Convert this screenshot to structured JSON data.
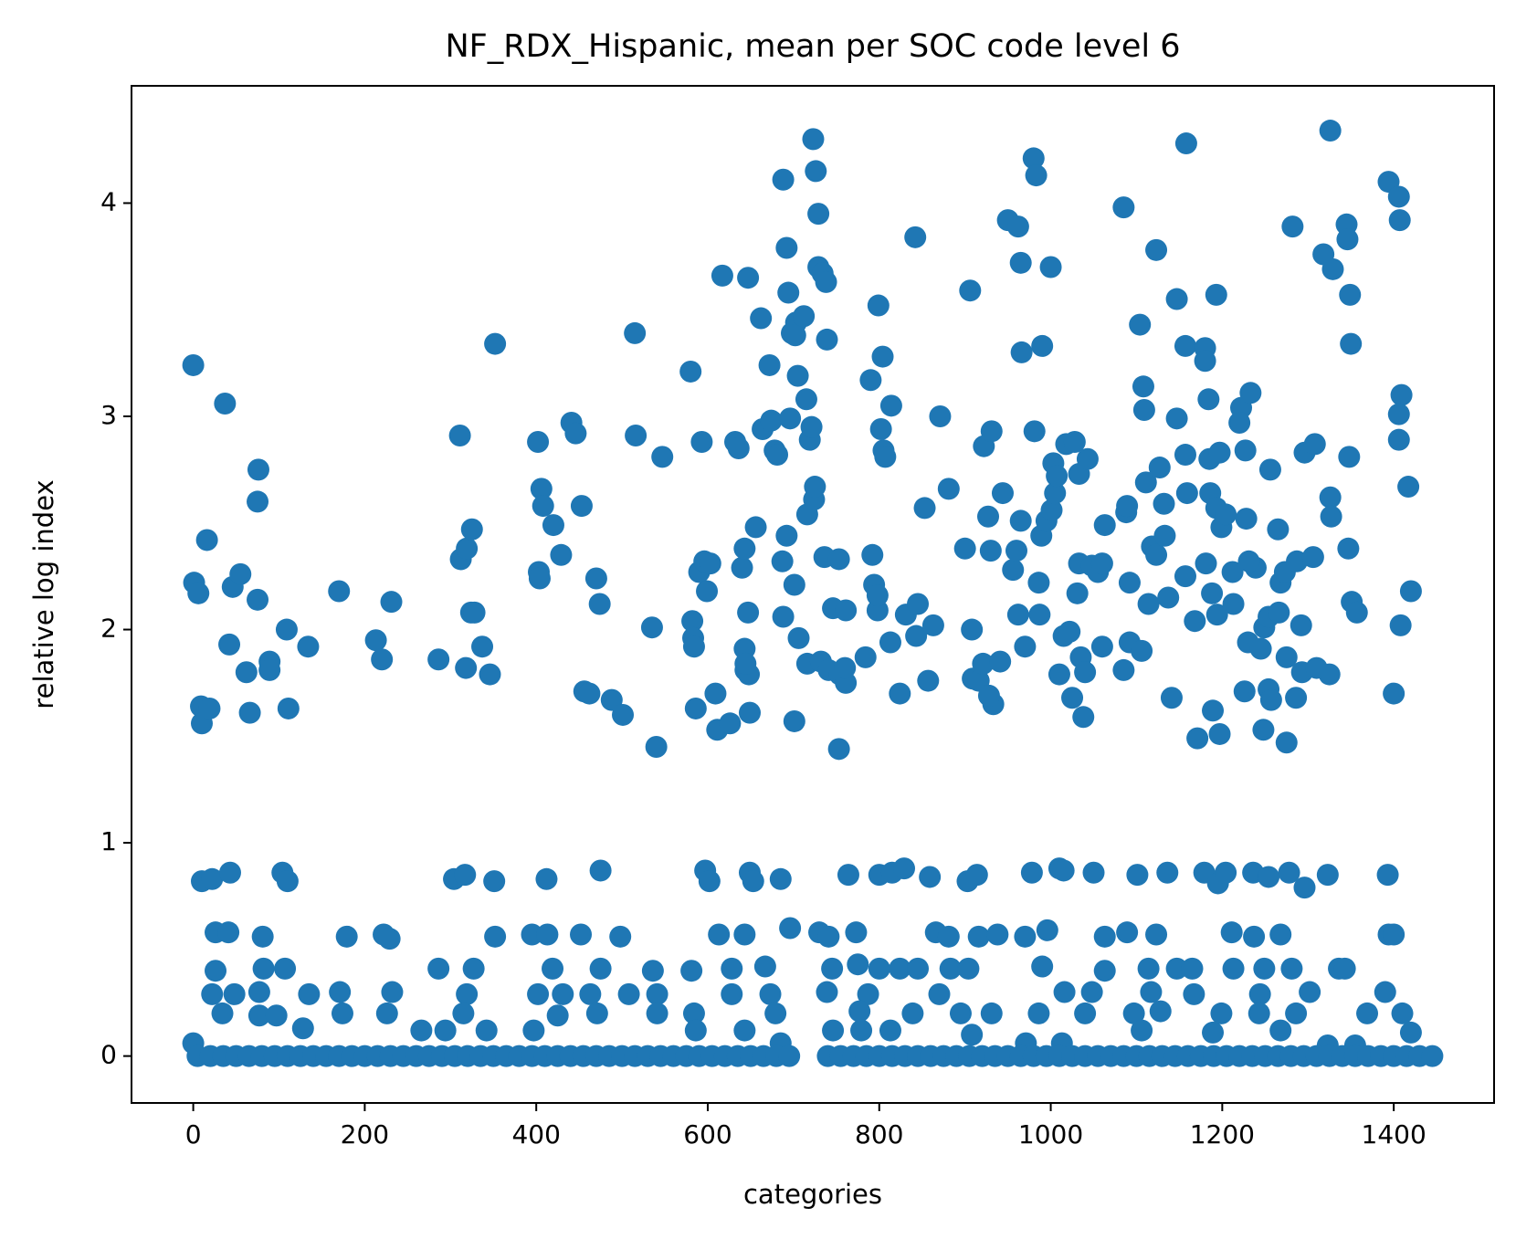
{
  "chart_data": {
    "type": "scatter",
    "title": "NF_RDX_Hispanic, mean per SOC code level 6",
    "x_label": "categories",
    "y_label": "relative log index",
    "color": "#1f77b4",
    "xlim": [
      -72,
      1517
    ],
    "ylim": [
      -0.22,
      4.55
    ],
    "xticks": [
      0,
      200,
      400,
      600,
      800,
      1000,
      1200,
      1400
    ],
    "yticks": [
      0,
      1,
      2,
      3,
      4
    ],
    "grid": false,
    "x": [
      0,
      1,
      6,
      9,
      10,
      19,
      16,
      37,
      46,
      55,
      42,
      62,
      66,
      75,
      76,
      75,
      89,
      89,
      109,
      111,
      134,
      170,
      213,
      220,
      231,
      286,
      311,
      312,
      319,
      325,
      324,
      328,
      318,
      337,
      346,
      352,
      402,
      403,
      404,
      406,
      408,
      420,
      429,
      441,
      446,
      453,
      456,
      462,
      470,
      474,
      488,
      501,
      515,
      516,
      535,
      540,
      547,
      580,
      582,
      583,
      584,
      586,
      593,
      590,
      596,
      599,
      603,
      609,
      611,
      617,
      626,
      632,
      636,
      640,
      643,
      647,
      647,
      643,
      644,
      648,
      644,
      649,
      656,
      662,
      664,
      672,
      674,
      678,
      681,
      687,
      688,
      688,
      692,
      692,
      694,
      696,
      698,
      701,
      701,
      703,
      702,
      705,
      706,
      712,
      715,
      716,
      716,
      719,
      721,
      724,
      725,
      723,
      726,
      729,
      729,
      732,
      734,
      738,
      739,
      736,
      741,
      746,
      753,
      753,
      754,
      761,
      761,
      760,
      784,
      790,
      792,
      794,
      798,
      798,
      799,
      802,
      805,
      804,
      807,
      814,
      813,
      824,
      831,
      842,
      843,
      845,
      853,
      857,
      863,
      871,
      881,
      900,
      906,
      908,
      909,
      916,
      921,
      922,
      927,
      931,
      930,
      933,
      928,
      944,
      941,
      950,
      956,
      960,
      962,
      965,
      966,
      965,
      970,
      962,
      980,
      983,
      981,
      986,
      987,
      990,
      989,
      995,
      1000,
      1001,
      1003,
      1005,
      1007,
      1010,
      1015,
      1018,
      1022,
      1025,
      1028,
      1033,
      1033,
      1031,
      1035,
      1040,
      1038,
      1043,
      1048,
      1055,
      1060,
      1060,
      1063,
      1085,
      1088,
      1085,
      1089,
      1092,
      1092,
      1106,
      1104,
      1108,
      1111,
      1109,
      1114,
      1118,
      1123,
      1123,
      1127,
      1132,
      1133,
      1137,
      1141,
      1147,
      1147,
      1157,
      1158,
      1157,
      1159,
      1157,
      1168,
      1171,
      1180,
      1180,
      1184,
      1186,
      1185,
      1181,
      1188,
      1189,
      1193,
      1193,
      1197,
      1197,
      1199,
      1194,
      1204,
      1212,
      1213,
      1222,
      1220,
      1226,
      1227,
      1228,
      1230,
      1233,
      1239,
      1231,
      1245,
      1249,
      1248,
      1254,
      1256,
      1254,
      1257,
      1265,
      1266,
      1268,
      1273,
      1275,
      1275,
      1282,
      1286,
      1287,
      1292,
      1293,
      1296,
      1306,
      1308,
      1310,
      1318,
      1326,
      1326,
      1327,
      1325,
      1329,
      1345,
      1346,
      1349,
      1350,
      1348,
      1347,
      1351,
      1357,
      1394,
      1400,
      1406,
      1407,
      1409,
      1406,
      1406,
      1408,
      1417,
      1420,
      10,
      22,
      43,
      104,
      110,
      304,
      317,
      351,
      412,
      475,
      597,
      602,
      649,
      653,
      685,
      764,
      800,
      815,
      829,
      859,
      903,
      914,
      978,
      1010,
      1015,
      1050,
      1101,
      1136,
      1179,
      1195,
      1204,
      1236,
      1254,
      1278,
      1296,
      1323,
      1393,
      26,
      41,
      81,
      179,
      222,
      229,
      352,
      395,
      413,
      452,
      498,
      613,
      643,
      696,
      730,
      741,
      773,
      866,
      881,
      916,
      938,
      970,
      996,
      1063,
      1089,
      1123,
      1211,
      1237,
      1268,
      1394,
      1400,
      26,
      82,
      107,
      286,
      327,
      419,
      475,
      536,
      581,
      628,
      667,
      745,
      775,
      800,
      824,
      845,
      883,
      904,
      990,
      1063,
      1114,
      1147,
      1165,
      1213,
      1249,
      1281,
      1336,
      1343,
      22,
      48,
      77,
      135,
      171,
      232,
      319,
      402,
      431,
      463,
      508,
      541,
      628,
      673,
      739,
      787,
      870,
      1016,
      1048,
      1117,
      1167,
      1244,
      1302,
      1390,
      34,
      77,
      97,
      174,
      226,
      315,
      425,
      471,
      541,
      584,
      679,
      777,
      839,
      895,
      931,
      986,
      1040,
      1097,
      1128,
      1199,
      1243,
      1286,
      1369,
      1410,
      128,
      266,
      294,
      342,
      397,
      586,
      643,
      746,
      779,
      813,
      908,
      1106,
      1189,
      1268,
      1420,
      0,
      685,
      971,
      1013,
      1323,
      1355,
      5,
      20,
      35,
      50,
      65,
      80,
      95,
      110,
      125,
      140,
      155,
      170,
      185,
      200,
      215,
      230,
      245,
      260,
      275,
      290,
      305,
      320,
      335,
      350,
      365,
      380,
      395,
      410,
      425,
      440,
      455,
      470,
      485,
      500,
      515,
      530,
      545,
      560,
      575,
      590,
      605,
      620,
      635,
      650,
      665,
      680,
      695,
      740,
      755,
      770,
      785,
      800,
      815,
      830,
      845,
      860,
      875,
      890,
      905,
      920,
      935,
      950,
      965,
      980,
      995,
      1010,
      1025,
      1040,
      1055,
      1070,
      1085,
      1100,
      1115,
      1130,
      1145,
      1160,
      1175,
      1190,
      1205,
      1220,
      1235,
      1250,
      1265,
      1280,
      1295,
      1310,
      1325,
      1340,
      1355,
      1370,
      1385,
      1400,
      1415,
      1430,
      1445
    ],
    "values": [
      3.24,
      2.22,
      2.17,
      1.64,
      1.56,
      1.63,
      2.42,
      3.06,
      2.2,
      2.26,
      1.93,
      1.8,
      1.61,
      2.14,
      2.75,
      2.6,
      1.85,
      1.81,
      2.0,
      1.63,
      1.92,
      2.18,
      1.95,
      1.86,
      2.13,
      1.86,
      2.91,
      2.33,
      2.38,
      2.47,
      2.08,
      2.08,
      1.82,
      1.92,
      1.79,
      3.34,
      2.88,
      2.27,
      2.24,
      2.66,
      2.58,
      2.49,
      2.35,
      2.97,
      2.92,
      2.58,
      1.71,
      1.7,
      2.24,
      2.12,
      1.67,
      1.6,
      3.39,
      2.91,
      2.01,
      1.45,
      2.81,
      3.21,
      2.04,
      1.96,
      1.92,
      1.63,
      2.88,
      2.27,
      2.32,
      2.18,
      2.31,
      1.7,
      1.53,
      3.66,
      1.56,
      2.88,
      2.85,
      2.29,
      2.38,
      2.08,
      3.65,
      1.91,
      1.81,
      1.79,
      1.84,
      1.61,
      2.48,
      3.46,
      2.94,
      3.24,
      2.98,
      2.84,
      2.82,
      2.32,
      2.06,
      4.11,
      2.44,
      3.79,
      3.58,
      2.99,
      3.39,
      1.57,
      2.21,
      3.44,
      3.38,
      3.19,
      1.96,
      3.47,
      3.08,
      2.54,
      1.84,
      2.89,
      2.95,
      2.61,
      2.67,
      4.3,
      4.15,
      3.95,
      3.7,
      1.85,
      3.67,
      3.63,
      3.36,
      2.34,
      1.81,
      2.1,
      2.33,
      1.44,
      1.79,
      2.09,
      1.75,
      1.82,
      1.87,
      3.17,
      2.35,
      2.21,
      2.09,
      2.16,
      3.52,
      2.94,
      2.84,
      3.28,
      2.81,
      3.05,
      1.94,
      1.7,
      2.07,
      3.84,
      1.97,
      2.12,
      2.57,
      1.76,
      2.02,
      3.0,
      2.66,
      2.38,
      3.59,
      2.0,
      1.77,
      1.76,
      1.84,
      2.86,
      2.53,
      2.93,
      2.37,
      1.65,
      1.69,
      2.64,
      1.85,
      3.92,
      2.28,
      2.37,
      3.89,
      3.72,
      3.3,
      2.51,
      1.92,
      2.07,
      4.21,
      4.13,
      2.93,
      2.22,
      2.07,
      3.33,
      2.44,
      2.51,
      3.7,
      2.56,
      2.78,
      2.64,
      2.72,
      1.79,
      1.97,
      2.87,
      1.99,
      1.68,
      2.88,
      2.31,
      2.73,
      2.17,
      1.87,
      1.8,
      1.59,
      2.8,
      2.3,
      2.27,
      2.31,
      1.92,
      2.49,
      3.98,
      2.55,
      1.81,
      2.58,
      2.22,
      1.94,
      1.9,
      3.43,
      3.14,
      2.69,
      3.03,
      2.12,
      2.39,
      2.35,
      3.78,
      2.76,
      2.59,
      2.44,
      2.15,
      1.68,
      3.55,
      2.99,
      3.33,
      4.28,
      2.82,
      2.64,
      2.25,
      2.04,
      1.49,
      3.32,
      3.26,
      3.08,
      2.64,
      2.8,
      2.31,
      2.17,
      1.62,
      3.57,
      2.57,
      1.51,
      2.83,
      2.48,
      2.07,
      2.54,
      2.27,
      2.12,
      3.04,
      2.97,
      1.71,
      2.84,
      2.52,
      1.94,
      3.11,
      2.29,
      2.32,
      1.91,
      2.01,
      1.53,
      2.06,
      2.75,
      1.72,
      1.67,
      2.47,
      2.08,
      2.22,
      2.27,
      1.87,
      1.47,
      3.89,
      1.68,
      2.32,
      2.02,
      1.8,
      2.83,
      2.34,
      2.87,
      1.82,
      3.76,
      4.34,
      2.62,
      2.53,
      1.79,
      3.69,
      3.9,
      3.83,
      3.57,
      3.34,
      2.81,
      2.38,
      2.13,
      2.08,
      4.1,
      1.7,
      4.03,
      3.92,
      3.1,
      3.01,
      2.89,
      2.02,
      2.67,
      2.18,
      0.82,
      0.83,
      0.86,
      0.86,
      0.82,
      0.83,
      0.85,
      0.82,
      0.83,
      0.87,
      0.87,
      0.82,
      0.86,
      0.82,
      0.83,
      0.85,
      0.85,
      0.86,
      0.88,
      0.84,
      0.82,
      0.85,
      0.86,
      0.88,
      0.87,
      0.86,
      0.85,
      0.86,
      0.86,
      0.81,
      0.86,
      0.86,
      0.84,
      0.86,
      0.79,
      0.85,
      0.85,
      0.58,
      0.58,
      0.56,
      0.56,
      0.57,
      0.55,
      0.56,
      0.57,
      0.57,
      0.57,
      0.56,
      0.57,
      0.57,
      0.6,
      0.58,
      0.56,
      0.58,
      0.58,
      0.56,
      0.56,
      0.57,
      0.56,
      0.59,
      0.56,
      0.58,
      0.57,
      0.58,
      0.56,
      0.57,
      0.57,
      0.57,
      0.4,
      0.41,
      0.41,
      0.41,
      0.41,
      0.41,
      0.41,
      0.4,
      0.4,
      0.41,
      0.42,
      0.41,
      0.43,
      0.41,
      0.41,
      0.41,
      0.41,
      0.41,
      0.42,
      0.4,
      0.41,
      0.41,
      0.41,
      0.41,
      0.41,
      0.41,
      0.41,
      0.41,
      0.29,
      0.29,
      0.3,
      0.29,
      0.3,
      0.3,
      0.29,
      0.29,
      0.29,
      0.29,
      0.29,
      0.29,
      0.29,
      0.29,
      0.3,
      0.29,
      0.29,
      0.3,
      0.3,
      0.3,
      0.29,
      0.29,
      0.3,
      0.3,
      0.2,
      0.19,
      0.19,
      0.2,
      0.2,
      0.2,
      0.19,
      0.2,
      0.2,
      0.2,
      0.2,
      0.21,
      0.2,
      0.2,
      0.2,
      0.2,
      0.2,
      0.2,
      0.21,
      0.2,
      0.2,
      0.2,
      0.2,
      0.2,
      0.13,
      0.12,
      0.12,
      0.12,
      0.12,
      0.12,
      0.12,
      0.12,
      0.12,
      0.12,
      0.1,
      0.12,
      0.11,
      0.12,
      0.11,
      0.06,
      0.06,
      0.06,
      0.06,
      0.05,
      0.05,
      0,
      0,
      0,
      0,
      0,
      0,
      0,
      0,
      0,
      0,
      0,
      0,
      0,
      0,
      0,
      0,
      0,
      0,
      0,
      0,
      0,
      0,
      0,
      0,
      0,
      0,
      0,
      0,
      0,
      0,
      0,
      0,
      0,
      0,
      0,
      0,
      0,
      0,
      0,
      0,
      0,
      0,
      0,
      0,
      0,
      0,
      0,
      0,
      0,
      0,
      0,
      0,
      0,
      0,
      0,
      0,
      0,
      0,
      0,
      0,
      0,
      0,
      0,
      0,
      0,
      0,
      0,
      0,
      0,
      0,
      0,
      0,
      0,
      0,
      0,
      0,
      0,
      0,
      0,
      0,
      0,
      0,
      0,
      0,
      0,
      0,
      0,
      0,
      0,
      0,
      0,
      0,
      0,
      0,
      0
    ]
  }
}
